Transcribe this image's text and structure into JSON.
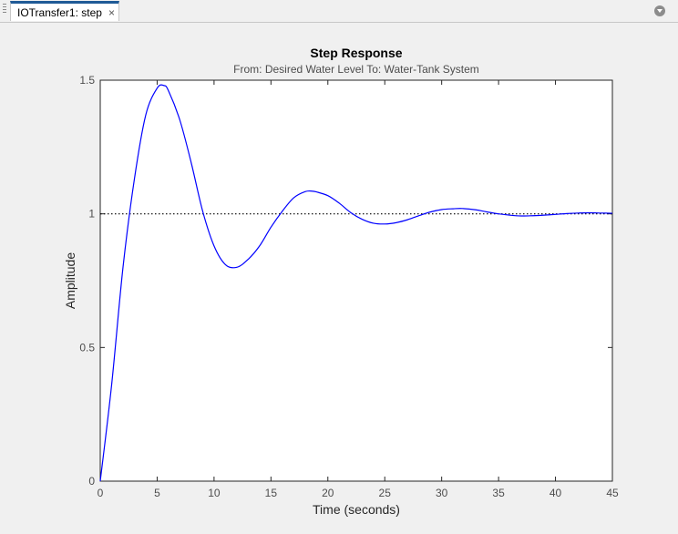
{
  "tab": {
    "label": "IOTransfer1: step",
    "close_glyph": "×",
    "menu_icon": "chevron-down-circle-icon"
  },
  "chart_data": {
    "type": "line",
    "title": "Step Response",
    "subtitle": "From: Desired  Water Level  To: Water-Tank System",
    "xlabel": "Time (seconds)",
    "ylabel": "Amplitude",
    "xlim": [
      0,
      45
    ],
    "ylim": [
      0,
      1.5
    ],
    "xticks": [
      0,
      5,
      10,
      15,
      20,
      25,
      30,
      35,
      40,
      45
    ],
    "yticks": [
      0,
      0.5,
      1,
      1.5
    ],
    "ytick_labels": [
      "0",
      "0.5",
      "1",
      "1.5"
    ],
    "grid": false,
    "reference_line": {
      "y": 1,
      "style": "dotted",
      "color": "#000000"
    },
    "series": [
      {
        "color": "#0000ff",
        "x": [
          0,
          1,
          2,
          3,
          4,
          5,
          5.6,
          6,
          7,
          8,
          9,
          10,
          11,
          12,
          13,
          14,
          15,
          16,
          17,
          18,
          18.6,
          19,
          20,
          21,
          22,
          23,
          24,
          25,
          26,
          27,
          28,
          29,
          30,
          31,
          31.8,
          33,
          34,
          35,
          36,
          37,
          38,
          39,
          40,
          41,
          42,
          43,
          44,
          45
        ],
        "y": [
          0,
          0.36,
          0.8,
          1.13,
          1.37,
          1.47,
          1.48,
          1.46,
          1.35,
          1.19,
          1.01,
          0.88,
          0.81,
          0.8,
          0.83,
          0.88,
          0.95,
          1.01,
          1.06,
          1.083,
          1.085,
          1.082,
          1.068,
          1.04,
          1.005,
          0.98,
          0.965,
          0.962,
          0.967,
          0.978,
          0.993,
          1.007,
          1.016,
          1.019,
          1.02,
          1.015,
          1.007,
          1.0,
          0.995,
          0.992,
          0.993,
          0.995,
          0.998,
          1.001,
          1.003,
          1.004,
          1.003,
          1.002
        ]
      }
    ]
  },
  "colors": {
    "tab_accent": "#1f5a96",
    "response_line": "#0000ff",
    "axes_text": "#4d4d4d"
  }
}
